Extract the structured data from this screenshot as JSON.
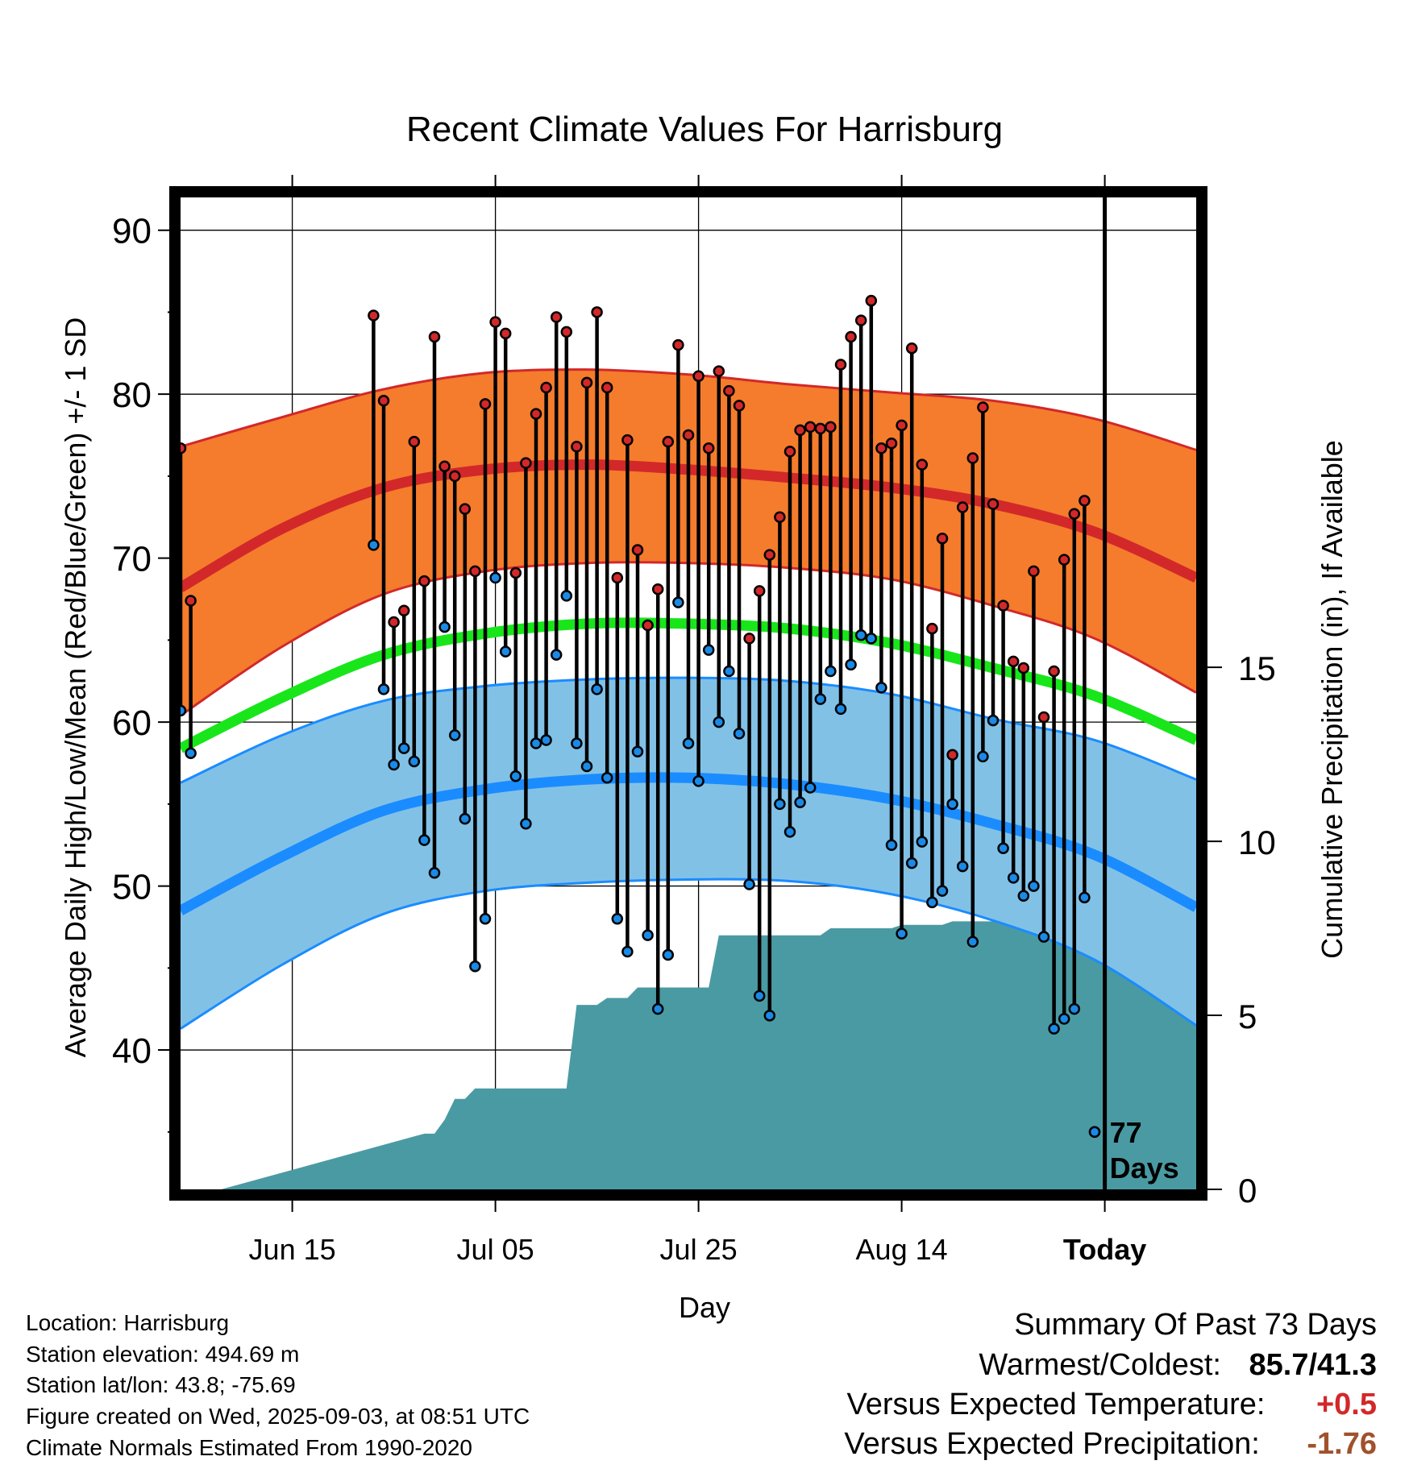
{
  "chart_data": {
    "type": "line",
    "title": "Recent Climate Values For Harrisburg",
    "xlabel": "Day",
    "ylabel_left": "Average Daily High/Low/Mean (Red/Blue/Green) +/- 1 SD",
    "ylabel_right": "Cumulative Precipitation (in), If Available",
    "x_tick_labels": [
      "Jun 15",
      "Jul 05",
      "Jul 25",
      "Aug 14",
      "Today"
    ],
    "x_tick_day_index": [
      11,
      31,
      51,
      71,
      91
    ],
    "today_index": 91,
    "x_range_day_index": [
      0,
      100
    ],
    "y_left_ticks": [
      40,
      50,
      60,
      70,
      80,
      90
    ],
    "y_left_range": [
      31.5,
      92
    ],
    "y_right_ticks": [
      0,
      5,
      10,
      15
    ],
    "y_right_range": [
      0,
      28.5
    ],
    "grid": true,
    "normals": {
      "day_index": [
        0,
        10,
        20,
        30,
        40,
        50,
        60,
        70,
        80,
        90,
        100
      ],
      "high_mean": [
        68.2,
        71.8,
        74.3,
        75.4,
        75.7,
        75.4,
        74.9,
        74.3,
        73.3,
        71.6,
        68.8
      ],
      "high_upper": [
        76.8,
        78.6,
        80.3,
        81.3,
        81.5,
        81.2,
        80.6,
        80.1,
        79.6,
        78.5,
        76.6
      ],
      "high_lower": [
        60.4,
        64.6,
        67.8,
        69.2,
        69.7,
        69.7,
        69.4,
        68.7,
        67.1,
        65.1,
        61.8
      ],
      "mean": [
        58.4,
        61.5,
        64.1,
        65.4,
        66.0,
        66.0,
        65.7,
        64.8,
        63.3,
        61.6,
        58.9
      ],
      "low_mean": [
        48.5,
        51.8,
        54.6,
        55.9,
        56.5,
        56.6,
        56.2,
        55.3,
        53.8,
        51.9,
        48.7
      ],
      "low_upper": [
        56.3,
        59.2,
        61.3,
        62.2,
        62.6,
        62.7,
        62.5,
        61.7,
        60.2,
        58.9,
        56.5
      ],
      "low_lower": [
        41.3,
        45.2,
        48.3,
        49.7,
        50.2,
        50.4,
        50.3,
        49.5,
        47.9,
        45.5,
        41.5
      ]
    },
    "observed": {
      "day_index": [
        0,
        1,
        19,
        20,
        21,
        22,
        23,
        24,
        25,
        26,
        27,
        28,
        29,
        30,
        31,
        32,
        33,
        34,
        35,
        36,
        37,
        38,
        39,
        40,
        41,
        42,
        43,
        44,
        45,
        46,
        47,
        48,
        49,
        50,
        51,
        52,
        53,
        54,
        55,
        56,
        57,
        58,
        59,
        60,
        61,
        62,
        63,
        64,
        65,
        66,
        67,
        68,
        69,
        70,
        71,
        72,
        73,
        74,
        75,
        76,
        77,
        78,
        79,
        80,
        81,
        82,
        83,
        84,
        85,
        86,
        87,
        88,
        89,
        90
      ],
      "high": [
        76.7,
        67.4,
        84.8,
        79.6,
        66.1,
        66.8,
        77.1,
        68.6,
        83.5,
        75.6,
        75.0,
        73.0,
        69.2,
        79.4,
        84.4,
        83.7,
        69.1,
        75.8,
        78.8,
        80.4,
        84.7,
        83.8,
        76.8,
        80.7,
        85.0,
        80.4,
        68.8,
        77.2,
        70.5,
        65.9,
        68.1,
        77.1,
        83.0,
        77.5,
        81.1,
        76.7,
        81.4,
        80.2,
        79.3,
        65.1,
        68.0,
        70.2,
        72.5,
        76.5,
        77.8,
        78.0,
        77.9,
        78.0,
        81.8,
        83.5,
        84.5,
        85.7,
        76.7,
        77.0,
        78.1,
        82.8,
        75.7,
        65.7,
        71.2,
        58.0,
        73.1,
        76.1,
        79.2,
        73.3,
        67.1,
        63.7,
        63.3,
        69.2,
        60.3,
        63.1,
        69.9,
        72.7,
        73.5,
        35.0
      ],
      "low": [
        60.7,
        58.1,
        70.8,
        62.0,
        57.4,
        58.4,
        57.6,
        52.8,
        50.8,
        65.8,
        59.2,
        54.1,
        45.1,
        48.0,
        68.8,
        64.3,
        56.7,
        53.8,
        58.7,
        58.9,
        64.1,
        67.7,
        58.7,
        57.3,
        62.0,
        56.6,
        48.0,
        46.0,
        58.2,
        47.0,
        42.5,
        45.8,
        67.3,
        58.7,
        56.4,
        64.4,
        60.0,
        63.1,
        59.3,
        50.1,
        43.3,
        42.1,
        55.0,
        53.3,
        55.1,
        56.0,
        61.4,
        63.1,
        60.8,
        63.5,
        65.3,
        65.1,
        62.1,
        52.5,
        47.1,
        51.4,
        52.7,
        49.0,
        49.7,
        55.0,
        51.2,
        46.6,
        57.9,
        60.1,
        52.3,
        50.5,
        49.4,
        50.0,
        46.9,
        41.3,
        41.9,
        42.5,
        49.3,
        35.0
      ]
    },
    "precip_cumulative": {
      "day_index": [
        0,
        4,
        24,
        25,
        26,
        27,
        28,
        29,
        38,
        39,
        40,
        41,
        42,
        43,
        44,
        45,
        46,
        47,
        48,
        49,
        50,
        51,
        52,
        53,
        54,
        55,
        56,
        57,
        58,
        59,
        60,
        61,
        62,
        63,
        64,
        65,
        66,
        67,
        68,
        69,
        70,
        71,
        72,
        73,
        74,
        75,
        76,
        77,
        78,
        79,
        80,
        81,
        82,
        83,
        84,
        85,
        86,
        87,
        88,
        89,
        90,
        91,
        92,
        100
      ],
      "values": [
        0,
        0,
        1.6,
        1.6,
        2.0,
        2.6,
        2.6,
        2.9,
        2.9,
        5.3,
        5.3,
        5.3,
        5.5,
        5.5,
        5.5,
        5.8,
        5.8,
        5.8,
        5.8,
        5.8,
        5.8,
        5.8,
        5.8,
        7.3,
        7.3,
        7.3,
        7.3,
        7.3,
        7.3,
        7.3,
        7.3,
        7.3,
        7.3,
        7.3,
        7.5,
        7.5,
        7.5,
        7.5,
        7.5,
        7.5,
        7.5,
        7.6,
        7.6,
        7.6,
        7.6,
        7.6,
        7.7,
        7.7,
        7.7,
        7.7,
        7.7,
        7.7,
        7.7,
        7.8,
        7.8,
        8.5,
        8.5,
        8.7,
        9.0,
        9.1,
        9.1,
        9.1,
        9.1,
        9.1
      ]
    },
    "days_label": "77 Days",
    "days_label_lines": [
      "77",
      "Days"
    ],
    "colors": {
      "high_band": "#f47c2c",
      "high_line": "#d2282a",
      "low_band": "#82c1e6",
      "low_line": "#1a8cff",
      "mean_line": "#18e61a",
      "precip": "#4a9aa3",
      "high_dot": "#d2282a",
      "low_dot": "#1a8ae6"
    }
  },
  "info": {
    "location": "Location: Harrisburg",
    "elevation": "Station elevation: 494.69 m",
    "latlon": "Station lat/lon: 43.8; -75.69",
    "created": "Figure created on Wed, 2025-09-03, at 08:51 UTC",
    "normals": "Climate Normals Estimated From 1990-2020"
  },
  "summary": {
    "title": "Summary Of Past 73 Days",
    "warmest_label": "Warmest/Coldest:",
    "warmest_value": "85.7/41.3",
    "temp_label": "Versus Expected Temperature:",
    "temp_value": "+0.5",
    "temp_color": "#d2282a",
    "precip_label": "Versus Expected Precipitation:",
    "precip_value": "-1.76",
    "precip_color": "#a0522d"
  }
}
